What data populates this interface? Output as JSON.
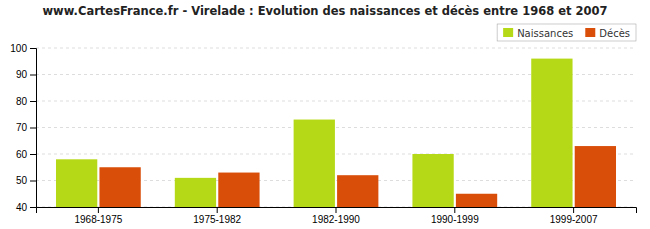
{
  "chart_data": {
    "type": "bar",
    "title": "www.CartesFrance.fr - Virelade : Evolution des naissances et décès entre 1968 et 2007",
    "categories": [
      "1968-1975",
      "1975-1982",
      "1982-1990",
      "1990-1999",
      "1999-2007"
    ],
    "series": [
      {
        "name": "Naissances",
        "color": "#b5d916",
        "values": [
          58,
          51,
          73,
          60,
          96
        ]
      },
      {
        "name": "Décès",
        "color": "#d94f0a",
        "values": [
          55,
          53,
          52,
          45,
          63
        ]
      }
    ],
    "ylim": [
      40,
      100
    ],
    "yticks": [
      40,
      50,
      60,
      70,
      80,
      90,
      100
    ],
    "grid": true,
    "legend": "upper-right"
  }
}
